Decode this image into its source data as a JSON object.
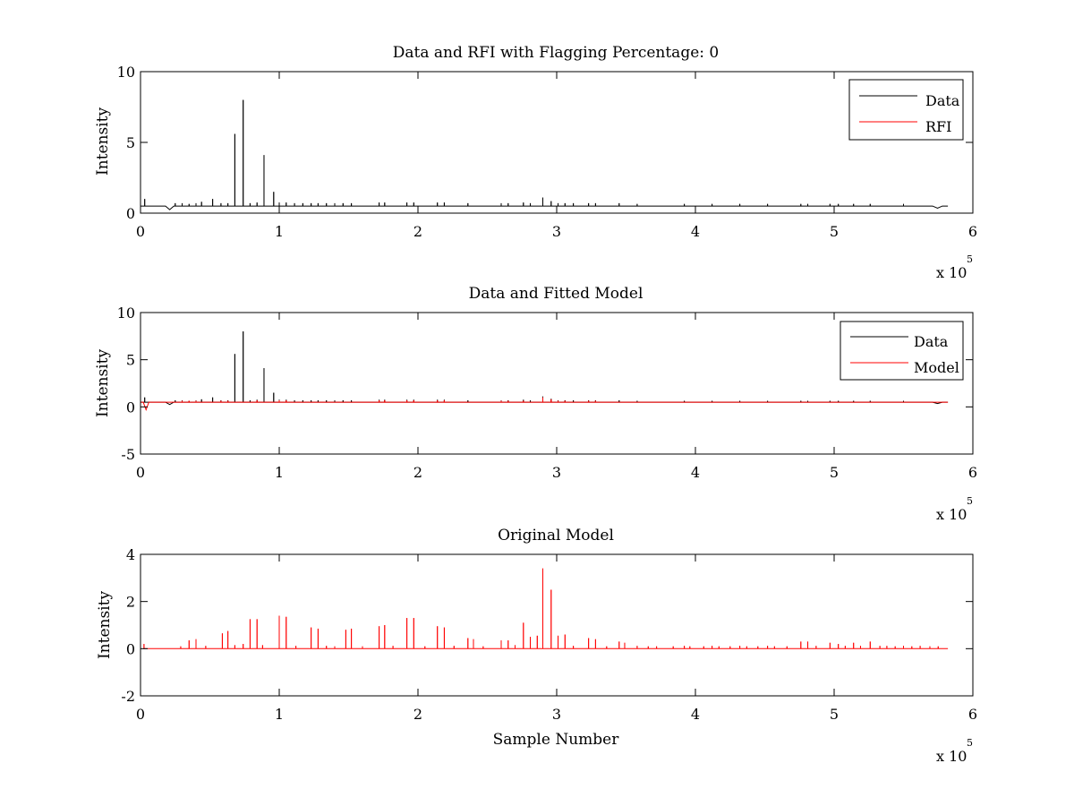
{
  "figure": {
    "background": "#ffffff"
  },
  "chart_data": [
    {
      "type": "line",
      "title": "Data and RFI with Flagging Percentage: 0",
      "xlabel": "",
      "ylabel": "Intensity",
      "xlim": [
        0,
        600000
      ],
      "ylim": [
        0,
        10
      ],
      "xticks": [
        0,
        1,
        2,
        3,
        4,
        5,
        6
      ],
      "xtick_labels": [
        "0",
        "1",
        "2",
        "3",
        "4",
        "5",
        "6"
      ],
      "xtick_values": [
        0,
        100000,
        200000,
        300000,
        400000,
        500000,
        600000
      ],
      "yticks": [
        0,
        5,
        10
      ],
      "ytick_labels": [
        "0",
        "5",
        "10"
      ],
      "x_multiplier": {
        "base": "x 10",
        "exponent": "5"
      },
      "grid": false,
      "legend": {
        "position": "top-right",
        "entries": [
          "Data",
          "RFI"
        ]
      },
      "series": [
        {
          "name": "Data",
          "color": "#000000",
          "baseline": 0.5,
          "x_end": 582000,
          "spikes": [
            [
              68000,
              5.6
            ],
            [
              74000,
              8.0
            ],
            [
              89000,
              4.1
            ],
            [
              96000,
              1.5
            ],
            [
              52000,
              1.0
            ],
            [
              3000,
              1.0
            ],
            [
              44000,
              0.8
            ],
            [
              290000,
              1.1
            ],
            [
              296000,
              0.85
            ],
            [
              25000,
              0.7
            ],
            [
              30000,
              0.7
            ],
            [
              35000,
              0.65
            ],
            [
              40000,
              0.7
            ],
            [
              58000,
              0.7
            ],
            [
              63000,
              0.7
            ],
            [
              79000,
              0.7
            ],
            [
              84000,
              0.75
            ],
            [
              100000,
              0.75
            ],
            [
              105000,
              0.75
            ],
            [
              111000,
              0.7
            ],
            [
              117000,
              0.7
            ],
            [
              123000,
              0.7
            ],
            [
              128000,
              0.7
            ],
            [
              134000,
              0.7
            ],
            [
              140000,
              0.7
            ],
            [
              146000,
              0.7
            ],
            [
              152000,
              0.7
            ],
            [
              172000,
              0.75
            ],
            [
              176000,
              0.75
            ],
            [
              192000,
              0.75
            ],
            [
              197000,
              0.75
            ],
            [
              214000,
              0.75
            ],
            [
              219000,
              0.75
            ],
            [
              236000,
              0.7
            ],
            [
              260000,
              0.7
            ],
            [
              265000,
              0.7
            ],
            [
              276000,
              0.75
            ],
            [
              281000,
              0.7
            ],
            [
              301000,
              0.7
            ],
            [
              306000,
              0.7
            ],
            [
              312000,
              0.7
            ],
            [
              323000,
              0.7
            ],
            [
              328000,
              0.7
            ],
            [
              345000,
              0.7
            ],
            [
              358000,
              0.65
            ],
            [
              392000,
              0.65
            ],
            [
              412000,
              0.65
            ],
            [
              432000,
              0.65
            ],
            [
              452000,
              0.65
            ],
            [
              476000,
              0.65
            ],
            [
              481000,
              0.65
            ],
            [
              497000,
              0.65
            ],
            [
              503000,
              0.65
            ],
            [
              514000,
              0.65
            ],
            [
              526000,
              0.65
            ],
            [
              550000,
              0.65
            ]
          ],
          "dips": [
            [
              18000,
              24000,
              0.25
            ],
            [
              571000,
              578000,
              0.35
            ]
          ]
        },
        {
          "name": "RFI",
          "color": "#ff0000",
          "baseline": null,
          "spikes": []
        }
      ]
    },
    {
      "type": "line",
      "title": "Data and Fitted Model",
      "xlabel": "",
      "ylabel": "Intensity",
      "xlim": [
        0,
        600000
      ],
      "ylim": [
        -5,
        10
      ],
      "xticks": [
        0,
        1,
        2,
        3,
        4,
        5,
        6
      ],
      "xtick_labels": [
        "0",
        "1",
        "2",
        "3",
        "4",
        "5",
        "6"
      ],
      "xtick_values": [
        0,
        100000,
        200000,
        300000,
        400000,
        500000,
        600000
      ],
      "yticks": [
        -5,
        0,
        5,
        10
      ],
      "ytick_labels": [
        "-5",
        "0",
        "5",
        "10"
      ],
      "x_multiplier": {
        "base": "x 10",
        "exponent": "5"
      },
      "grid": false,
      "legend": {
        "position": "top-right",
        "entries": [
          "Data",
          "Model"
        ]
      },
      "series": [
        {
          "name": "Data",
          "color": "#000000",
          "baseline": 0.5,
          "x_end": 582000,
          "spikes": [
            [
              68000,
              5.6
            ],
            [
              74000,
              8.0
            ],
            [
              89000,
              4.1
            ],
            [
              96000,
              1.5
            ],
            [
              52000,
              1.0
            ],
            [
              3000,
              1.0
            ],
            [
              44000,
              0.8
            ],
            [
              290000,
              1.1
            ],
            [
              296000,
              0.85
            ],
            [
              25000,
              0.7
            ],
            [
              30000,
              0.7
            ],
            [
              35000,
              0.65
            ],
            [
              40000,
              0.7
            ],
            [
              58000,
              0.7
            ],
            [
              63000,
              0.7
            ],
            [
              79000,
              0.7
            ],
            [
              84000,
              0.75
            ],
            [
              100000,
              0.75
            ],
            [
              105000,
              0.75
            ],
            [
              111000,
              0.7
            ],
            [
              117000,
              0.7
            ],
            [
              123000,
              0.7
            ],
            [
              128000,
              0.7
            ],
            [
              134000,
              0.7
            ],
            [
              140000,
              0.7
            ],
            [
              146000,
              0.7
            ],
            [
              152000,
              0.7
            ],
            [
              172000,
              0.75
            ],
            [
              176000,
              0.75
            ],
            [
              192000,
              0.75
            ],
            [
              197000,
              0.75
            ],
            [
              214000,
              0.75
            ],
            [
              219000,
              0.75
            ],
            [
              236000,
              0.7
            ],
            [
              260000,
              0.7
            ],
            [
              265000,
              0.7
            ],
            [
              276000,
              0.75
            ],
            [
              281000,
              0.7
            ],
            [
              301000,
              0.7
            ],
            [
              306000,
              0.7
            ],
            [
              312000,
              0.7
            ],
            [
              323000,
              0.7
            ],
            [
              328000,
              0.7
            ],
            [
              345000,
              0.7
            ],
            [
              358000,
              0.65
            ],
            [
              392000,
              0.65
            ],
            [
              412000,
              0.65
            ],
            [
              432000,
              0.65
            ],
            [
              452000,
              0.65
            ],
            [
              476000,
              0.65
            ],
            [
              481000,
              0.65
            ],
            [
              497000,
              0.65
            ],
            [
              503000,
              0.65
            ],
            [
              514000,
              0.65
            ],
            [
              526000,
              0.65
            ],
            [
              550000,
              0.65
            ]
          ],
          "dips": [
            [
              18000,
              24000,
              0.25
            ],
            [
              571000,
              578000,
              0.35
            ]
          ]
        },
        {
          "name": "Model",
          "color": "#ff0000",
          "baseline": 0.5,
          "x_end": 582000,
          "spikes": [
            [
              290000,
              1.0
            ],
            [
              296000,
              0.8
            ],
            [
              172000,
              0.7
            ],
            [
              176000,
              0.7
            ],
            [
              192000,
              0.7
            ],
            [
              197000,
              0.7
            ],
            [
              214000,
              0.7
            ],
            [
              219000,
              0.7
            ],
            [
              100000,
              0.7
            ],
            [
              105000,
              0.7
            ],
            [
              84000,
              0.7
            ],
            [
              30000,
              0.65
            ],
            [
              35000,
              0.65
            ],
            [
              40000,
              0.65
            ],
            [
              58000,
              0.65
            ],
            [
              63000,
              0.65
            ],
            [
              301000,
              0.65
            ],
            [
              306000,
              0.65
            ],
            [
              323000,
              0.65
            ],
            [
              328000,
              0.65
            ],
            [
              260000,
              0.65
            ],
            [
              265000,
              0.65
            ],
            [
              276000,
              0.65
            ]
          ],
          "dips": [
            [
              2000,
              6000,
              -0.3
            ]
          ]
        }
      ]
    },
    {
      "type": "line",
      "title": "Original Model",
      "xlabel": "Sample Number",
      "ylabel": "Intensity",
      "xlim": [
        0,
        600000
      ],
      "ylim": [
        -2,
        4
      ],
      "xticks": [
        0,
        1,
        2,
        3,
        4,
        5,
        6
      ],
      "xtick_labels": [
        "0",
        "1",
        "2",
        "3",
        "4",
        "5",
        "6"
      ],
      "xtick_values": [
        0,
        100000,
        200000,
        300000,
        400000,
        500000,
        600000
      ],
      "yticks": [
        -2,
        0,
        2,
        4
      ],
      "ytick_labels": [
        "-2",
        "0",
        "2",
        "4"
      ],
      "x_multiplier": {
        "base": "x 10",
        "exponent": "5"
      },
      "grid": false,
      "legend": null,
      "series": [
        {
          "color": "#ff0000",
          "baseline": 0.0,
          "x_start": 2000,
          "x_end": 582000,
          "spikes": [
            [
              290000,
              3.4
            ],
            [
              296000,
              2.5
            ],
            [
              79000,
              1.25
            ],
            [
              84000,
              1.25
            ],
            [
              100000,
              1.4
            ],
            [
              105000,
              1.35
            ],
            [
              192000,
              1.3
            ],
            [
              197000,
              1.3
            ],
            [
              214000,
              0.95
            ],
            [
              219000,
              0.9
            ],
            [
              123000,
              0.9
            ],
            [
              128000,
              0.85
            ],
            [
              148000,
              0.8
            ],
            [
              152000,
              0.85
            ],
            [
              172000,
              0.95
            ],
            [
              176000,
              1.0
            ],
            [
              276000,
              1.1
            ],
            [
              59000,
              0.65
            ],
            [
              63000,
              0.75
            ],
            [
              35000,
              0.35
            ],
            [
              40000,
              0.4
            ],
            [
              281000,
              0.5
            ],
            [
              286000,
              0.55
            ],
            [
              301000,
              0.55
            ],
            [
              306000,
              0.6
            ],
            [
              236000,
              0.45
            ],
            [
              240000,
              0.4
            ],
            [
              260000,
              0.35
            ],
            [
              265000,
              0.35
            ],
            [
              323000,
              0.45
            ],
            [
              328000,
              0.4
            ],
            [
              345000,
              0.3
            ],
            [
              349000,
              0.25
            ],
            [
              476000,
              0.3
            ],
            [
              481000,
              0.3
            ],
            [
              497000,
              0.25
            ],
            [
              503000,
              0.2
            ],
            [
              514000,
              0.25
            ],
            [
              526000,
              0.3
            ],
            [
              2500,
              0.2
            ],
            [
              29000,
              0.1
            ],
            [
              47000,
              0.12
            ],
            [
              68000,
              0.15
            ],
            [
              74000,
              0.2
            ],
            [
              88000,
              0.15
            ],
            [
              112000,
              0.12
            ],
            [
              134000,
              0.12
            ],
            [
              140000,
              0.1
            ],
            [
              160000,
              0.1
            ],
            [
              182000,
              0.12
            ],
            [
              205000,
              0.1
            ],
            [
              226000,
              0.12
            ],
            [
              247000,
              0.1
            ],
            [
              270000,
              0.15
            ],
            [
              312000,
              0.12
            ],
            [
              336000,
              0.1
            ],
            [
              358000,
              0.12
            ],
            [
              366000,
              0.1
            ],
            [
              372000,
              0.1
            ],
            [
              384000,
              0.1
            ],
            [
              392000,
              0.12
            ],
            [
              396000,
              0.1
            ],
            [
              406000,
              0.1
            ],
            [
              412000,
              0.12
            ],
            [
              417000,
              0.1
            ],
            [
              425000,
              0.1
            ],
            [
              432000,
              0.12
            ],
            [
              437000,
              0.1
            ],
            [
              445000,
              0.1
            ],
            [
              452000,
              0.12
            ],
            [
              457000,
              0.1
            ],
            [
              466000,
              0.1
            ],
            [
              487000,
              0.12
            ],
            [
              508000,
              0.12
            ],
            [
              519000,
              0.12
            ],
            [
              533000,
              0.12
            ],
            [
              538000,
              0.12
            ],
            [
              544000,
              0.1
            ],
            [
              550000,
              0.12
            ],
            [
              556000,
              0.1
            ],
            [
              562000,
              0.12
            ],
            [
              569000,
              0.1
            ],
            [
              575000,
              0.1
            ]
          ],
          "dips": []
        }
      ]
    }
  ]
}
